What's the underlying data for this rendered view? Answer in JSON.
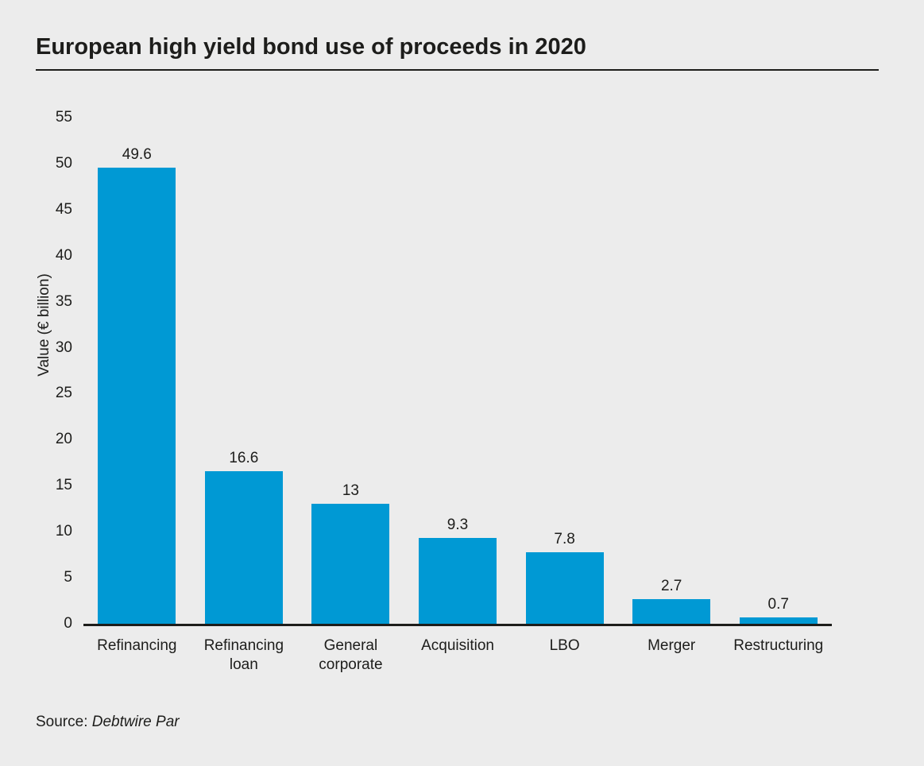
{
  "page": {
    "source_prefix": "Source:",
    "source_name": "Debtwire Par"
  },
  "colors": {
    "background": "#ececec",
    "bar": "#0099d4",
    "text": "#1d1d1b",
    "axis": "#1d1d1b"
  },
  "chart_data": {
    "type": "bar",
    "title": "European high yield bond use of proceeds in 2020",
    "categories": [
      "Refinancing",
      "Refinancing loan",
      "General corporate",
      "Acquisition",
      "LBO",
      "Merger",
      "Restructuring"
    ],
    "values": [
      49.6,
      16.6,
      13,
      9.3,
      7.8,
      2.7,
      0.7
    ],
    "bar_labels": [
      "49.6",
      "16.6",
      "13",
      "9.3",
      "7.8",
      "2.7",
      "0.7"
    ],
    "xlabel": "",
    "ylabel": "Value (€ billion)",
    "ylim": [
      0,
      55
    ],
    "yticks": [
      0,
      5,
      10,
      15,
      20,
      25,
      30,
      35,
      40,
      45,
      50,
      55
    ],
    "grid": false,
    "legend_position": "none",
    "bar_color": "#0099d4"
  }
}
